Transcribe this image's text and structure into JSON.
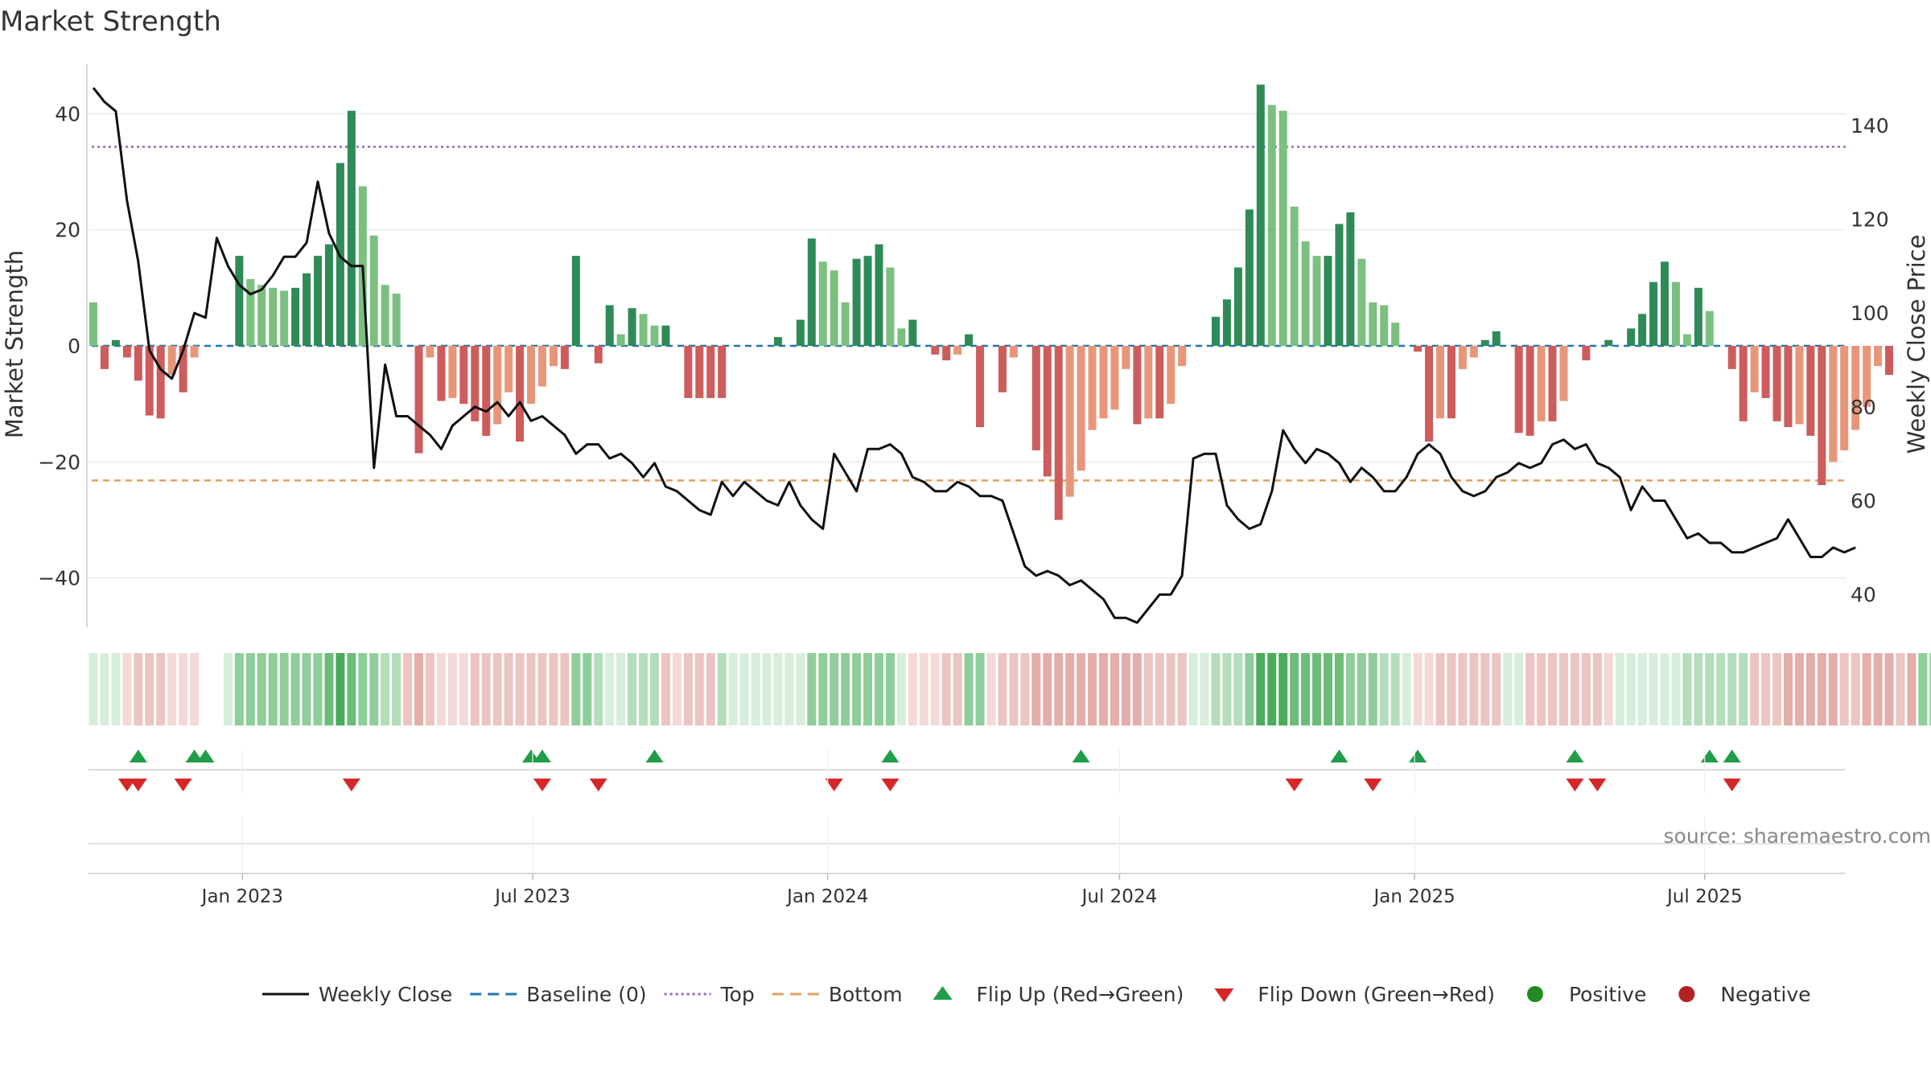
{
  "chart_data": {
    "type": "bar",
    "title": "Market Strength",
    "ylabel_left": "Market Strength",
    "ylabel_right": "Weekly Close Price",
    "source": "source: sharemaestro.com",
    "grid": true,
    "legend_position": "bottom-center",
    "ylim_left": [
      -48.5,
      48.5
    ],
    "ylim_right": [
      33,
      153
    ],
    "yticks_left": [
      "40",
      "20",
      "0",
      "−20",
      "−40"
    ],
    "yticks_left_values": [
      40,
      20,
      0,
      -20,
      -40
    ],
    "yticks_right": [
      "140",
      "120",
      "100",
      "80",
      "60",
      "40"
    ],
    "yticks_right_values": [
      140,
      120,
      100,
      80,
      60,
      40
    ],
    "x_start": "2022-09-30",
    "week_count": 158,
    "xticks": [
      {
        "label": "Jan 2023",
        "date": "2023-01-01"
      },
      {
        "label": "Jul 2023",
        "date": "2023-07-01"
      },
      {
        "label": "Jan 2024",
        "date": "2024-01-01"
      },
      {
        "label": "Jul 2024",
        "date": "2024-07-01"
      },
      {
        "label": "Jan 2025",
        "date": "2025-01-01"
      },
      {
        "label": "Jul 2025",
        "date": "2025-07-01"
      }
    ],
    "reference_lines": [
      {
        "name": "Baseline (0)",
        "value": 0,
        "color": "#1f77b4",
        "style": "dashed"
      },
      {
        "name": "Top",
        "value": 34.3,
        "color": "#9467bd",
        "style": "dotted"
      },
      {
        "name": "Bottom",
        "value": -23.2,
        "color": "#e0a060",
        "style": "dashed"
      }
    ],
    "colors": {
      "strong_positive": "#2e8b57",
      "weak_positive": "#7cc07f",
      "strong_negative": "#cd5c5c",
      "weak_negative": "#e8967a",
      "close_line": "#111111",
      "flip_up": "#1f9d48",
      "flip_down": "#d62728",
      "positive_dot": "#228b22",
      "negative_dot": "#b22222"
    },
    "series": [
      {
        "name": "Market Strength",
        "values": [
          7.5,
          -4,
          1,
          -2,
          -6,
          -12,
          -12.5,
          -5,
          -8,
          -2,
          0,
          0,
          0,
          15.5,
          11.5,
          10.5,
          10,
          9.5,
          10,
          12.5,
          15.5,
          17.5,
          31.5,
          40.5,
          27.5,
          19,
          10.5,
          9,
          0,
          -18.5,
          -2,
          -9.5,
          -9,
          -10,
          -13,
          -15.5,
          -13.5,
          -8,
          -16.5,
          -10,
          -7,
          -3.5,
          -4,
          15.5,
          0,
          -3,
          7,
          2,
          6.5,
          5.5,
          3.5,
          3.5,
          0,
          -9,
          -9,
          -9,
          -9,
          0,
          0,
          0,
          0,
          1.5,
          0,
          4.5,
          18.5,
          14.5,
          13,
          7.5,
          15,
          15.5,
          17.5,
          13.5,
          3,
          4.5,
          0,
          -1.5,
          -2.5,
          -1.5,
          2,
          -14,
          0,
          -8,
          -2,
          0,
          -18,
          -22.5,
          -30,
          -26,
          -21.5,
          -14.5,
          -12.5,
          -11,
          -4,
          -13.5,
          -12.5,
          -12.5,
          -10,
          -3.5,
          0,
          0,
          5,
          8,
          13.5,
          23.5,
          45,
          41.5,
          40.5,
          24,
          18,
          15.5,
          15.5,
          21,
          23,
          15,
          7.5,
          7,
          4,
          0,
          -1,
          -16.5,
          -12.5,
          -12.5,
          -4,
          -2,
          1,
          2.5,
          0,
          -15,
          -15.5,
          -13,
          -13,
          -9.5,
          0,
          -2.5,
          0,
          1,
          0,
          3,
          5.5,
          11,
          14.5,
          11,
          2,
          10,
          6,
          0,
          -4,
          -13,
          -8,
          -9,
          -13,
          -14,
          -13.5,
          -15.5,
          -24,
          -20,
          -18,
          -14.5,
          -10.5,
          -3.5,
          -5
        ]
      },
      {
        "name": "Weekly Close",
        "values": [
          148,
          145,
          143,
          124,
          111,
          92,
          88,
          86,
          92,
          100,
          99,
          116,
          110,
          106,
          104,
          105,
          108,
          112,
          112,
          115,
          128,
          117,
          112,
          110,
          110,
          67,
          89,
          78,
          78,
          76,
          74,
          71,
          76,
          78,
          80,
          79,
          81,
          78,
          81,
          77,
          78,
          76,
          74,
          70,
          72,
          72,
          69,
          70,
          68,
          65,
          68,
          63,
          62,
          60,
          58,
          57,
          64,
          61,
          64,
          62,
          60,
          59,
          64,
          59,
          56,
          54,
          70,
          66,
          62,
          71,
          71,
          72,
          70,
          65,
          64,
          62,
          62,
          64,
          63,
          61,
          61,
          60,
          53,
          46,
          44,
          45,
          44,
          42,
          43,
          41,
          39,
          35,
          35,
          34,
          37,
          40,
          40,
          44,
          69,
          70,
          70,
          59,
          56,
          54,
          55,
          62,
          75,
          71,
          68,
          71,
          70,
          68,
          64,
          67,
          65,
          62,
          62,
          65,
          70,
          72,
          70,
          65,
          62,
          61,
          62,
          65,
          66,
          68,
          67,
          68,
          72,
          73,
          71,
          72,
          68,
          67,
          65,
          58,
          63,
          60,
          60,
          56,
          52,
          53,
          51,
          51,
          49,
          49,
          50,
          51,
          52,
          56,
          52,
          48,
          48,
          50,
          49,
          50
        ]
      }
    ],
    "regime_band": {
      "name": "Regime strip",
      "values": [
        1,
        1,
        1,
        1,
        2,
        2,
        2,
        1,
        1,
        1,
        0,
        0,
        1,
        3,
        3,
        3,
        3,
        3,
        3,
        3,
        3,
        4,
        5,
        4,
        3,
        3,
        2,
        2,
        2,
        3,
        2,
        1,
        1,
        1,
        2,
        2,
        2,
        2,
        2,
        2,
        2,
        2,
        2,
        3,
        3,
        2,
        1,
        1,
        2,
        2,
        2,
        2,
        1,
        2,
        2,
        2,
        2,
        1,
        1,
        1,
        1,
        1,
        1,
        1,
        3,
        3,
        3,
        3,
        3,
        3,
        3,
        3,
        1,
        1,
        1,
        1,
        2,
        2,
        3,
        3,
        1,
        2,
        2,
        2,
        3,
        3,
        3,
        3,
        3,
        3,
        3,
        3,
        3,
        3,
        2,
        2,
        2,
        2,
        1,
        1,
        2,
        2,
        2,
        3,
        5,
        5,
        5,
        4,
        4,
        4,
        4,
        4,
        3,
        3,
        3,
        2,
        2,
        1,
        1,
        1,
        2,
        2,
        2,
        2,
        2,
        2,
        1,
        1,
        2,
        2,
        2,
        2,
        2,
        2,
        2,
        1,
        1,
        1,
        1,
        1,
        1,
        1,
        2,
        2,
        2,
        2,
        2,
        2,
        2,
        2,
        2,
        3,
        3,
        3,
        3,
        3,
        2,
        2,
        3,
        3,
        3,
        2,
        3,
        3,
        3,
        3,
        3,
        3,
        3
      ],
      "sign": [
        1,
        1,
        1,
        -1,
        -1,
        -1,
        -1,
        -1,
        -1,
        -1,
        1,
        1,
        1,
        1,
        1,
        1,
        1,
        1,
        1,
        1,
        1,
        1,
        1,
        1,
        1,
        1,
        1,
        1,
        -1,
        -1,
        -1,
        -1,
        -1,
        -1,
        -1,
        -1,
        -1,
        -1,
        -1,
        -1,
        -1,
        -1,
        -1,
        1,
        1,
        1,
        1,
        1,
        1,
        1,
        1,
        -1,
        -1,
        -1,
        -1,
        -1,
        1,
        1,
        1,
        1,
        1,
        1,
        1,
        1,
        1,
        1,
        1,
        1,
        1,
        1,
        1,
        1,
        1,
        -1,
        -1,
        -1,
        -1,
        -1,
        1,
        1,
        -1,
        -1,
        -1,
        -1,
        -1,
        -1,
        -1,
        -1,
        -1,
        -1,
        -1,
        -1,
        -1,
        -1,
        -1,
        -1,
        -1,
        -1,
        1,
        1,
        1,
        1,
        1,
        1,
        1,
        1,
        1,
        1,
        1,
        1,
        1,
        1,
        1,
        1,
        1,
        1,
        1,
        1,
        -1,
        -1,
        -1,
        -1,
        -1,
        -1,
        -1,
        -1,
        1,
        1,
        -1,
        -1,
        -1,
        -1,
        -1,
        -1,
        -1,
        -1,
        1,
        1,
        1,
        1,
        1,
        1,
        1,
        1,
        1,
        1,
        1,
        1,
        -1,
        -1,
        -1,
        -1,
        -1,
        -1,
        -1,
        -1,
        -1,
        -1,
        -1,
        -1,
        -1,
        -1,
        -1,
        1,
        1,
        1,
        1,
        1,
        1,
        1,
        1,
        1,
        1
      ]
    },
    "flips_up_dates": [
      "2022-10-28",
      "2022-12-02",
      "2022-12-09",
      "2023-06-30",
      "2023-07-07",
      "2023-09-15",
      "2024-02-09",
      "2024-06-07",
      "2024-11-15",
      "2025-01-03",
      "2025-04-11",
      "2025-07-04",
      "2025-07-18"
    ],
    "flips_down_dates": [
      "2022-10-21",
      "2022-10-28",
      "2022-11-25",
      "2023-03-10",
      "2023-07-07",
      "2023-08-11",
      "2024-01-05",
      "2024-02-09",
      "2024-10-18",
      "2024-12-06",
      "2025-04-11",
      "2025-04-25",
      "2025-07-18"
    ],
    "legend": [
      {
        "label": "Weekly Close",
        "kind": "line-solid",
        "color": "#111111"
      },
      {
        "label": "Baseline (0)",
        "kind": "line-dash",
        "color": "#1f77b4"
      },
      {
        "label": "Top",
        "kind": "line-dot",
        "color": "#9467bd"
      },
      {
        "label": "Bottom",
        "kind": "line-dash",
        "color": "#e0a060"
      },
      {
        "label": "Flip Up (Red→Green)",
        "kind": "tri-up",
        "color": "#1f9d48"
      },
      {
        "label": "Flip Down (Green→Red)",
        "kind": "tri-down",
        "color": "#d62728"
      },
      {
        "label": "Positive",
        "kind": "dot",
        "color": "#228b22"
      },
      {
        "label": "Negative",
        "kind": "dot",
        "color": "#b22222"
      }
    ]
  }
}
